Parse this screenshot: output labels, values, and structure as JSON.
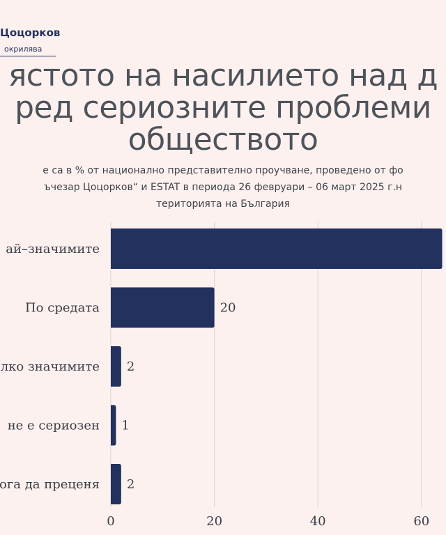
{
  "logo": {
    "name": "Цоцорков",
    "tagline": "окрилява"
  },
  "title_lines": [
    "ястото на насилието над д",
    "ред сериозните проблеми",
    "обществото"
  ],
  "subtitle_lines": [
    "е са в % от национално представително проучване, проведено от фо",
    "ъчезар Цоцорков“ и ESTAT в периода 26 февруари – 06 март 2025 г.н",
    "територията на България"
  ],
  "chart_data": {
    "type": "bar",
    "orientation": "horizontal",
    "categories": [
      "ай–значимите",
      "По средата",
      "лко значимите",
      "не е сериозен",
      "ога да преценя"
    ],
    "values": [
      null,
      20,
      2,
      1,
      2
    ],
    "value_labels": [
      "",
      "20",
      "2",
      "1",
      "2"
    ],
    "xlim": [
      0,
      64
    ],
    "xticks": [
      0,
      20,
      40,
      60
    ],
    "xtick_labels": [
      "0",
      "20",
      "40",
      "60"
    ],
    "grid": true,
    "colors": {
      "bar": "#22315e",
      "grid": "#d9d3d3",
      "background": "#fdf1f0"
    }
  }
}
